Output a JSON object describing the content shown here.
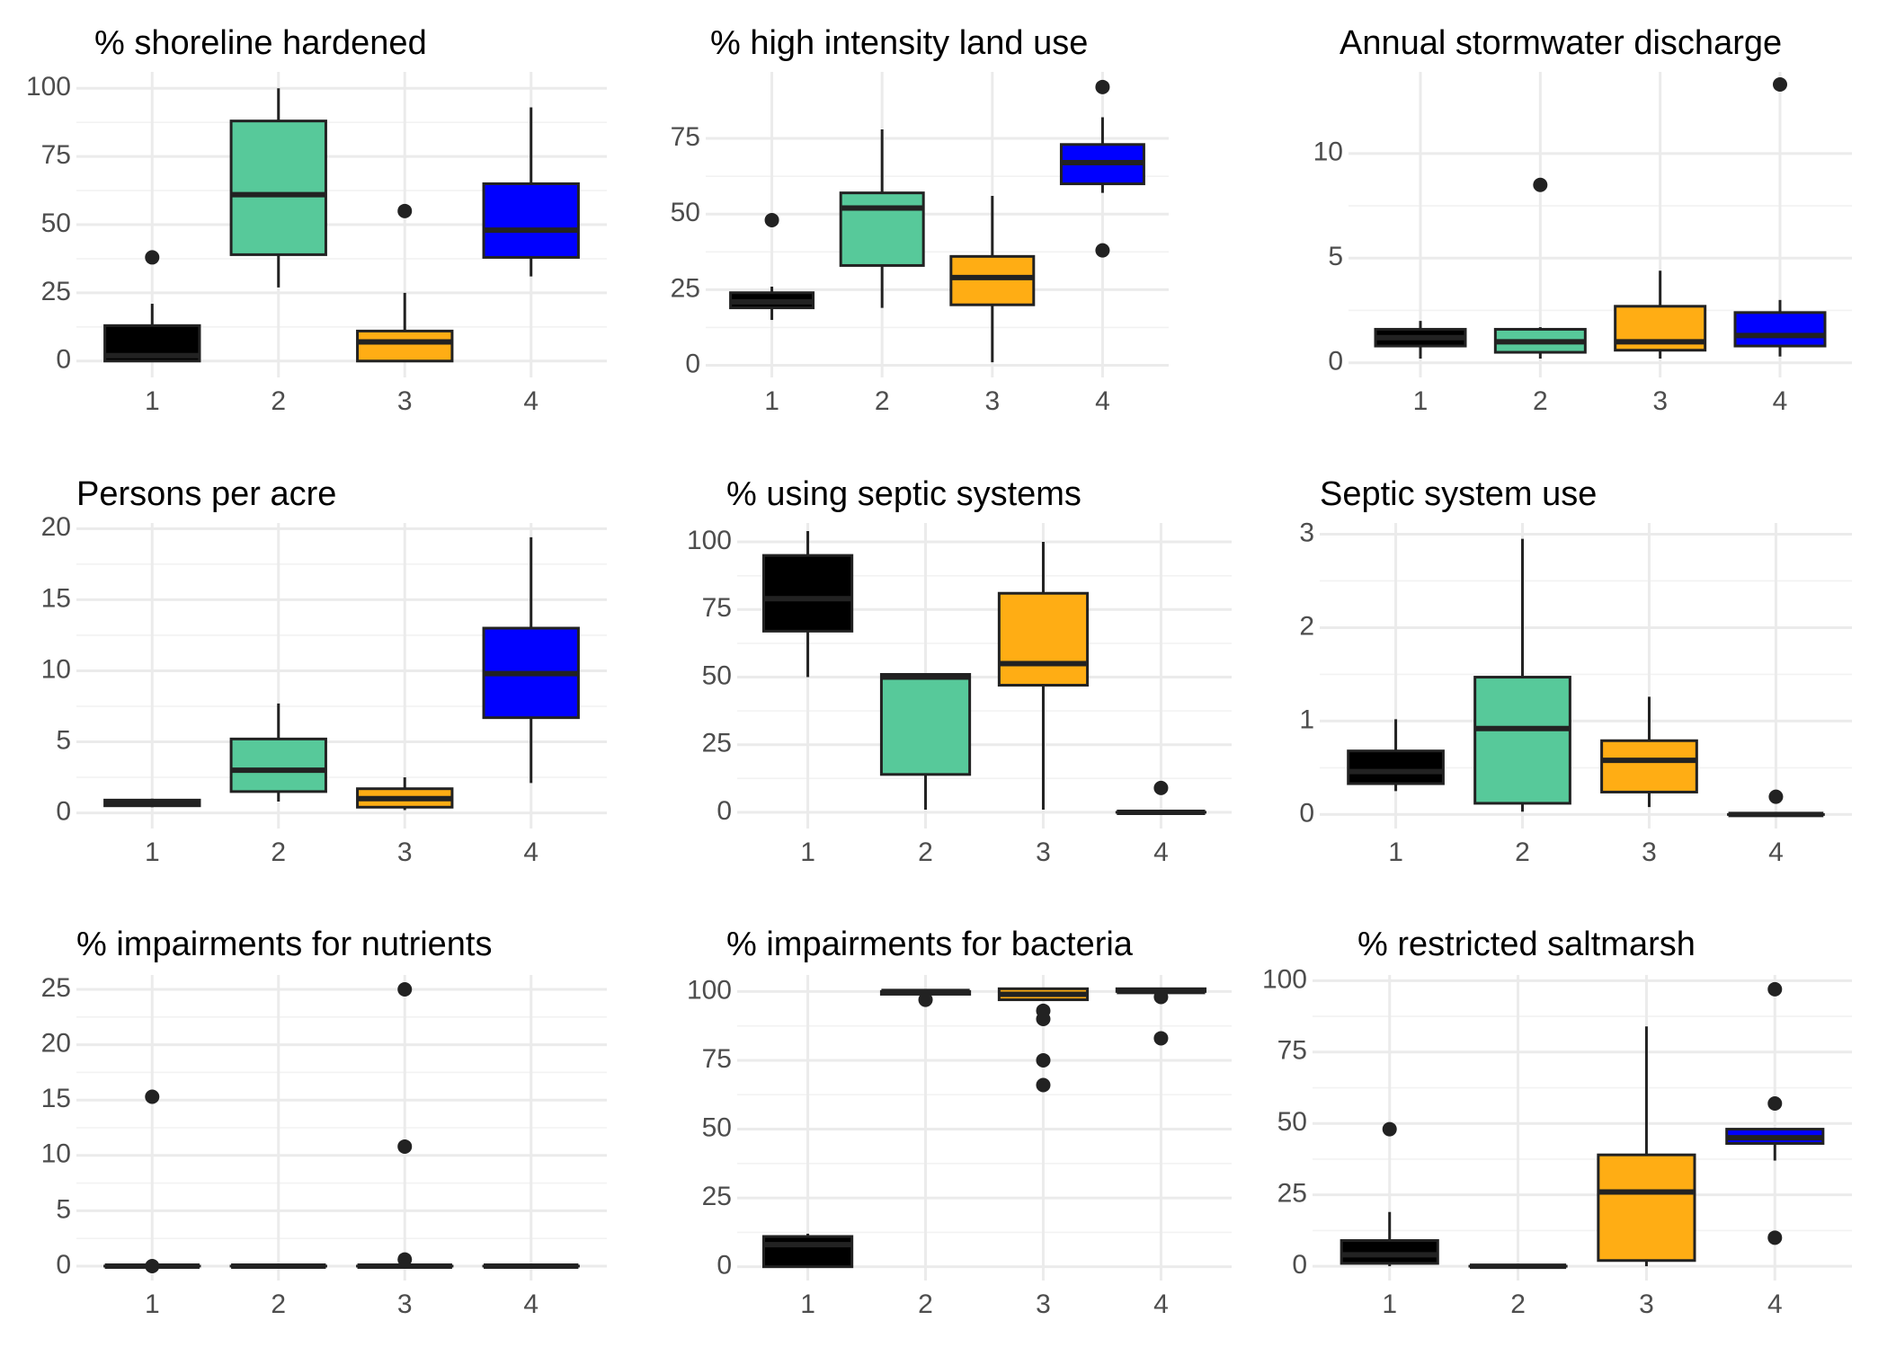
{
  "colors": {
    "group1": "#000000",
    "group2": "#57c99a",
    "group3": "#ffad14",
    "group4": "#0000ff",
    "outline": "#222222"
  },
  "chart_data": [
    {
      "type": "boxplot",
      "title": "% shoreline hardened",
      "categories": [
        "1",
        "2",
        "3",
        "4"
      ],
      "ylim": [
        -6,
        106
      ],
      "yticks": [
        0,
        25,
        50,
        75,
        100
      ],
      "series": [
        {
          "group": "1",
          "whisker_low": 0,
          "q1": 0,
          "median": 2,
          "q3": 13,
          "whisker_high": 21,
          "outliers": [
            38
          ]
        },
        {
          "group": "2",
          "whisker_low": 27,
          "q1": 39,
          "median": 61,
          "q3": 88,
          "whisker_high": 100,
          "outliers": []
        },
        {
          "group": "3",
          "whisker_low": 0,
          "q1": 0,
          "median": 7,
          "q3": 11,
          "whisker_high": 25,
          "outliers": [
            55
          ]
        },
        {
          "group": "4",
          "whisker_low": 31,
          "q1": 38,
          "median": 48,
          "q3": 65,
          "whisker_high": 93,
          "outliers": []
        }
      ]
    },
    {
      "type": "boxplot",
      "title": "% high intensity land use",
      "categories": [
        "1",
        "2",
        "3",
        "4"
      ],
      "ylim": [
        -4,
        97
      ],
      "yticks": [
        0,
        25,
        50,
        75
      ],
      "series": [
        {
          "group": "1",
          "whisker_low": 15,
          "q1": 19,
          "median": 21,
          "q3": 24,
          "whisker_high": 26,
          "outliers": [
            48
          ]
        },
        {
          "group": "2",
          "whisker_low": 19,
          "q1": 33,
          "median": 52,
          "q3": 57,
          "whisker_high": 78,
          "outliers": []
        },
        {
          "group": "3",
          "whisker_low": 1,
          "q1": 20,
          "median": 29,
          "q3": 36,
          "whisker_high": 56,
          "outliers": []
        },
        {
          "group": "4",
          "whisker_low": 57,
          "q1": 60,
          "median": 67,
          "q3": 73,
          "whisker_high": 82,
          "outliers": [
            38,
            92
          ]
        }
      ]
    },
    {
      "type": "boxplot",
      "title": "Annual stormwater discharge",
      "categories": [
        "1",
        "2",
        "3",
        "4"
      ],
      "ylim": [
        -0.7,
        13.9
      ],
      "yticks": [
        0,
        5,
        10
      ],
      "series": [
        {
          "group": "1",
          "whisker_low": 0.2,
          "q1": 0.8,
          "median": 1.2,
          "q3": 1.6,
          "whisker_high": 2.0,
          "outliers": []
        },
        {
          "group": "2",
          "whisker_low": 0.2,
          "q1": 0.5,
          "median": 1.0,
          "q3": 1.6,
          "whisker_high": 1.7,
          "outliers": [
            8.5
          ]
        },
        {
          "group": "3",
          "whisker_low": 0.2,
          "q1": 0.6,
          "median": 1.0,
          "q3": 2.7,
          "whisker_high": 4.4,
          "outliers": []
        },
        {
          "group": "4",
          "whisker_low": 0.3,
          "q1": 0.8,
          "median": 1.3,
          "q3": 2.4,
          "whisker_high": 3.0,
          "outliers": [
            13.3
          ]
        }
      ]
    },
    {
      "type": "boxplot",
      "title": "Persons per acre",
      "categories": [
        "1",
        "2",
        "3",
        "4"
      ],
      "ylim": [
        -1.1,
        20.4
      ],
      "yticks": [
        0,
        5,
        10,
        15,
        20
      ],
      "series": [
        {
          "group": "1",
          "whisker_low": 0.4,
          "q1": 0.5,
          "median": 0.7,
          "q3": 0.9,
          "whisker_high": 1.0,
          "outliers": []
        },
        {
          "group": "2",
          "whisker_low": 0.8,
          "q1": 1.5,
          "median": 3.0,
          "q3": 5.2,
          "whisker_high": 7.7,
          "outliers": []
        },
        {
          "group": "3",
          "whisker_low": 0.2,
          "q1": 0.4,
          "median": 1.0,
          "q3": 1.7,
          "whisker_high": 2.5,
          "outliers": []
        },
        {
          "group": "4",
          "whisker_low": 2.1,
          "q1": 6.7,
          "median": 9.8,
          "q3": 13.0,
          "whisker_high": 19.4,
          "outliers": []
        }
      ]
    },
    {
      "type": "boxplot",
      "title": "% using septic systems",
      "categories": [
        "1",
        "2",
        "3",
        "4"
      ],
      "ylim": [
        -6,
        107
      ],
      "yticks": [
        0,
        25,
        50,
        75,
        100
      ],
      "series": [
        {
          "group": "1",
          "whisker_low": 50,
          "q1": 67,
          "median": 79,
          "q3": 95,
          "whisker_high": 104,
          "outliers": []
        },
        {
          "group": "2",
          "whisker_low": 1,
          "q1": 14,
          "median": 50,
          "q3": 51,
          "whisker_high": 51,
          "outliers": []
        },
        {
          "group": "3",
          "whisker_low": 1,
          "q1": 47,
          "median": 55,
          "q3": 81,
          "whisker_high": 100,
          "outliers": []
        },
        {
          "group": "4",
          "whisker_low": 0,
          "q1": 0,
          "median": 0,
          "q3": 0,
          "whisker_high": 0,
          "outliers": [
            9
          ]
        }
      ]
    },
    {
      "type": "boxplot",
      "title": "Septic system use",
      "categories": [
        "1",
        "2",
        "3",
        "4"
      ],
      "ylim": [
        -0.15,
        3.12
      ],
      "yticks": [
        0,
        1,
        2,
        3
      ],
      "series": [
        {
          "group": "1",
          "whisker_low": 0.25,
          "q1": 0.33,
          "median": 0.46,
          "q3": 0.68,
          "whisker_high": 1.02,
          "outliers": []
        },
        {
          "group": "2",
          "whisker_low": 0.03,
          "q1": 0.12,
          "median": 0.92,
          "q3": 1.47,
          "whisker_high": 2.95,
          "outliers": []
        },
        {
          "group": "3",
          "whisker_low": 0.08,
          "q1": 0.24,
          "median": 0.58,
          "q3": 0.79,
          "whisker_high": 1.26,
          "outliers": []
        },
        {
          "group": "4",
          "whisker_low": 0,
          "q1": 0,
          "median": 0,
          "q3": 0,
          "whisker_high": 0,
          "outliers": [
            0.19
          ]
        }
      ]
    },
    {
      "type": "boxplot",
      "title": "% impairments for nutrients",
      "categories": [
        "1",
        "2",
        "3",
        "4"
      ],
      "ylim": [
        -1.3,
        26.3
      ],
      "yticks": [
        0,
        5,
        10,
        15,
        20,
        25
      ],
      "series": [
        {
          "group": "1",
          "whisker_low": 0,
          "q1": 0,
          "median": 0,
          "q3": 0,
          "whisker_high": 0,
          "outliers": [
            0,
            15.3
          ]
        },
        {
          "group": "2",
          "whisker_low": 0,
          "q1": 0,
          "median": 0,
          "q3": 0,
          "whisker_high": 0,
          "outliers": []
        },
        {
          "group": "3",
          "whisker_low": 0,
          "q1": 0,
          "median": 0,
          "q3": 0,
          "whisker_high": 0,
          "outliers": [
            0.6,
            10.8,
            25.0
          ]
        },
        {
          "group": "4",
          "whisker_low": 0,
          "q1": 0,
          "median": 0,
          "q3": 0,
          "whisker_high": 0,
          "outliers": []
        }
      ]
    },
    {
      "type": "boxplot",
      "title": "% impairments for bacteria",
      "categories": [
        "1",
        "2",
        "3",
        "4"
      ],
      "ylim": [
        -5,
        106
      ],
      "yticks": [
        0,
        25,
        50,
        75,
        100
      ],
      "series": [
        {
          "group": "1",
          "whisker_low": 0,
          "q1": 0,
          "median": 8,
          "q3": 11,
          "whisker_high": 12,
          "outliers": []
        },
        {
          "group": "2",
          "whisker_low": 98,
          "q1": 99,
          "median": 100,
          "q3": 100,
          "whisker_high": 100,
          "outliers": [
            97
          ]
        },
        {
          "group": "3",
          "whisker_low": 97,
          "q1": 97,
          "median": 99,
          "q3": 101,
          "whisker_high": 101,
          "outliers": [
            66,
            75,
            90,
            93
          ]
        },
        {
          "group": "4",
          "whisker_low": 100,
          "q1": 100,
          "median": 100,
          "q3": 101,
          "whisker_high": 101,
          "outliers": [
            83,
            98
          ]
        }
      ]
    },
    {
      "type": "boxplot",
      "title": "% restricted saltmarsh",
      "categories": [
        "1",
        "2",
        "3",
        "4"
      ],
      "ylim": [
        -5,
        102
      ],
      "yticks": [
        0,
        25,
        50,
        75,
        100
      ],
      "series": [
        {
          "group": "1",
          "whisker_low": 0,
          "q1": 1,
          "median": 4,
          "q3": 9,
          "whisker_high": 19,
          "outliers": [
            48
          ]
        },
        {
          "group": "2",
          "whisker_low": 0,
          "q1": 0,
          "median": 0,
          "q3": 0,
          "whisker_high": 0,
          "outliers": []
        },
        {
          "group": "3",
          "whisker_low": 0,
          "q1": 2,
          "median": 26,
          "q3": 39,
          "whisker_high": 84,
          "outliers": []
        },
        {
          "group": "4",
          "whisker_low": 37,
          "q1": 43,
          "median": 45,
          "q3": 48,
          "whisker_high": 48,
          "outliers": [
            10,
            57,
            97
          ]
        }
      ]
    }
  ]
}
